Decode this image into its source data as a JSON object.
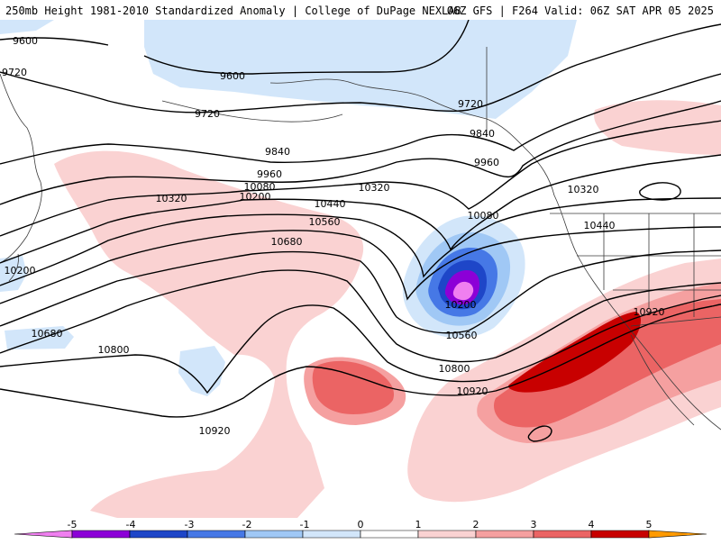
{
  "header": {
    "title_left": "250mb Height 1981-2010 Standardized Anomaly | College of DuPage NEXLAB",
    "title_right": "06Z GFS | F264 Valid: 06Z SAT APR 05 2025"
  },
  "contour_labels": [
    "9600",
    "9720",
    "9600",
    "9720",
    "9720",
    "9840",
    "9840",
    "9960",
    "9960",
    "10080",
    "10200",
    "10320",
    "10320",
    "10440",
    "10560",
    "10680",
    "10080",
    "10320",
    "10440",
    "10200",
    "10200",
    "10560",
    "10680",
    "10800",
    "10800",
    "10920",
    "10920",
    "10920"
  ],
  "colorbar": {
    "ticks": [
      "-5",
      "-4",
      "-3",
      "-2",
      "-1",
      "0",
      "1",
      "2",
      "3",
      "4",
      "5"
    ],
    "colors": [
      "#f07ff0",
      "#8c00d7",
      "#1e46c8",
      "#4678e6",
      "#a0c8f5",
      "#d2e6fa",
      "#ffffff",
      "#fad2d2",
      "#f5a0a0",
      "#eb6464",
      "#c80000",
      "#ff9a00"
    ]
  },
  "colors": {
    "background": "#ffffff",
    "neg1": "#d2e6fa",
    "neg2": "#a0c8f5",
    "neg3": "#4678e6",
    "neg4": "#1e46c8",
    "neg5": "#8c00d7",
    "neg6": "#f07ff0",
    "pos1": "#fad2d2",
    "pos2": "#f5a0a0",
    "pos3": "#eb6464",
    "pos4": "#c80000"
  }
}
